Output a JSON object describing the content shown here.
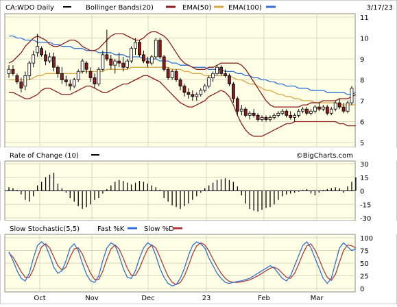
{
  "header": {
    "symbol": "CA:WDO Daily",
    "date": "3/17/23",
    "legend": [
      {
        "label": "Bollinger Bands(20)",
        "color": "#8b1a1a"
      },
      {
        "label": "EMA(50)",
        "color": "#d9a441"
      },
      {
        "label": "EMA(100)",
        "color": "#2f6fd6"
      }
    ]
  },
  "watermark": "©BigCharts.com",
  "colors": {
    "panel_bg": "#ffffe6",
    "grid": "#d7d7c0",
    "up": "#ffffff",
    "down": "#8b1a1a",
    "bb": "#8b1a1a",
    "ema50": "#d9a441",
    "ema100": "#2f6fd6",
    "roc": "#000000",
    "fast_k": "#2f6fd6",
    "slow_d": "#b03a3a"
  },
  "x_labels": [
    "Oct",
    "Nov",
    "Dec",
    "23",
    "Feb",
    "Mar"
  ],
  "roc_panel": {
    "title": "Rate of Change (10)",
    "yticks": [
      "30",
      "15",
      "0",
      "-15",
      "-30"
    ]
  },
  "stoch_panel": {
    "title": "Slow Stochastic(5,5)",
    "fast_label": "Fast %K",
    "slow_label": "Slow %D",
    "yticks": [
      "100",
      "75",
      "50",
      "25",
      "0"
    ]
  },
  "chart_data": [
    {
      "type": "candlestick",
      "title": "CA:WDO Daily",
      "ylim": [
        5,
        11
      ],
      "yticks": [
        11,
        10,
        9,
        8,
        7,
        6,
        5
      ],
      "ohlc": [
        {
          "o": 8.3,
          "h": 8.7,
          "l": 8.1,
          "c": 8.5
        },
        {
          "o": 8.5,
          "h": 8.7,
          "l": 8.2,
          "c": 8.3
        },
        {
          "o": 8.2,
          "h": 8.3,
          "l": 7.8,
          "c": 7.9
        },
        {
          "o": 7.9,
          "h": 8.1,
          "l": 7.4,
          "c": 7.6
        },
        {
          "o": 7.7,
          "h": 8.4,
          "l": 7.5,
          "c": 8.2
        },
        {
          "o": 8.2,
          "h": 8.9,
          "l": 8.0,
          "c": 8.8
        },
        {
          "o": 8.8,
          "h": 9.4,
          "l": 8.6,
          "c": 9.2
        },
        {
          "o": 9.3,
          "h": 10.2,
          "l": 9.1,
          "c": 9.6
        },
        {
          "o": 9.5,
          "h": 9.6,
          "l": 9.1,
          "c": 9.2
        },
        {
          "o": 9.2,
          "h": 9.4,
          "l": 8.7,
          "c": 8.9
        },
        {
          "o": 8.9,
          "h": 9.3,
          "l": 8.8,
          "c": 9.1
        },
        {
          "o": 9.1,
          "h": 9.3,
          "l": 8.4,
          "c": 8.6
        },
        {
          "o": 8.6,
          "h": 8.7,
          "l": 8.1,
          "c": 8.3
        },
        {
          "o": 8.3,
          "h": 8.6,
          "l": 7.8,
          "c": 8.0
        },
        {
          "o": 8.0,
          "h": 8.2,
          "l": 7.7,
          "c": 7.9
        },
        {
          "o": 7.8,
          "h": 8.0,
          "l": 7.5,
          "c": 7.7
        },
        {
          "o": 7.7,
          "h": 8.1,
          "l": 7.6,
          "c": 8.0
        },
        {
          "o": 8.0,
          "h": 8.5,
          "l": 7.9,
          "c": 8.4
        },
        {
          "o": 8.4,
          "h": 9.0,
          "l": 8.3,
          "c": 8.9
        },
        {
          "o": 8.8,
          "h": 8.9,
          "l": 8.3,
          "c": 8.5
        },
        {
          "o": 8.4,
          "h": 8.6,
          "l": 7.9,
          "c": 8.1
        },
        {
          "o": 8.1,
          "h": 8.3,
          "l": 7.6,
          "c": 7.8
        },
        {
          "o": 7.8,
          "h": 8.6,
          "l": 7.7,
          "c": 8.5
        },
        {
          "o": 8.5,
          "h": 9.4,
          "l": 8.4,
          "c": 9.2
        },
        {
          "o": 9.2,
          "h": 10.4,
          "l": 8.9,
          "c": 9.0
        },
        {
          "o": 9.0,
          "h": 9.2,
          "l": 8.5,
          "c": 8.7
        },
        {
          "o": 8.7,
          "h": 9.0,
          "l": 8.3,
          "c": 8.9
        },
        {
          "o": 8.9,
          "h": 9.3,
          "l": 8.6,
          "c": 8.8
        },
        {
          "o": 8.8,
          "h": 9.1,
          "l": 8.4,
          "c": 8.6
        },
        {
          "o": 8.6,
          "h": 9.0,
          "l": 8.5,
          "c": 8.9
        },
        {
          "o": 8.9,
          "h": 9.6,
          "l": 8.8,
          "c": 9.5
        },
        {
          "o": 9.5,
          "h": 10.0,
          "l": 9.2,
          "c": 9.8
        },
        {
          "o": 9.8,
          "h": 9.9,
          "l": 9.1,
          "c": 9.2
        },
        {
          "o": 9.2,
          "h": 9.4,
          "l": 8.8,
          "c": 8.9
        },
        {
          "o": 8.9,
          "h": 9.1,
          "l": 8.6,
          "c": 8.8
        },
        {
          "o": 8.8,
          "h": 9.2,
          "l": 8.7,
          "c": 9.1
        },
        {
          "o": 9.1,
          "h": 10.0,
          "l": 9.0,
          "c": 9.9
        },
        {
          "o": 9.9,
          "h": 10.0,
          "l": 9.0,
          "c": 9.1
        },
        {
          "o": 9.1,
          "h": 9.2,
          "l": 8.4,
          "c": 8.5
        },
        {
          "o": 8.5,
          "h": 8.6,
          "l": 8.0,
          "c": 8.1
        },
        {
          "o": 8.1,
          "h": 8.5,
          "l": 8.0,
          "c": 8.4
        },
        {
          "o": 8.4,
          "h": 8.5,
          "l": 7.9,
          "c": 8.0
        },
        {
          "o": 8.0,
          "h": 8.1,
          "l": 7.5,
          "c": 7.7
        },
        {
          "o": 7.7,
          "h": 7.8,
          "l": 7.2,
          "c": 7.4
        },
        {
          "o": 7.4,
          "h": 7.6,
          "l": 7.1,
          "c": 7.3
        },
        {
          "o": 7.3,
          "h": 7.5,
          "l": 7.0,
          "c": 7.2
        },
        {
          "o": 7.2,
          "h": 7.4,
          "l": 7.0,
          "c": 7.3
        },
        {
          "o": 7.3,
          "h": 7.6,
          "l": 7.2,
          "c": 7.5
        },
        {
          "o": 7.5,
          "h": 7.8,
          "l": 7.4,
          "c": 7.7
        },
        {
          "o": 7.7,
          "h": 8.2,
          "l": 7.6,
          "c": 8.1
        },
        {
          "o": 8.1,
          "h": 8.4,
          "l": 7.9,
          "c": 8.3
        },
        {
          "o": 8.3,
          "h": 8.7,
          "l": 8.2,
          "c": 8.6
        },
        {
          "o": 8.6,
          "h": 8.7,
          "l": 8.2,
          "c": 8.3
        },
        {
          "o": 8.3,
          "h": 8.5,
          "l": 8.1,
          "c": 8.2
        },
        {
          "o": 8.2,
          "h": 8.3,
          "l": 7.7,
          "c": 7.8
        },
        {
          "o": 7.8,
          "h": 7.9,
          "l": 6.9,
          "c": 7.1
        },
        {
          "o": 7.1,
          "h": 7.2,
          "l": 6.3,
          "c": 6.5
        },
        {
          "o": 6.5,
          "h": 6.8,
          "l": 6.3,
          "c": 6.6
        },
        {
          "o": 6.6,
          "h": 6.7,
          "l": 6.2,
          "c": 6.3
        },
        {
          "o": 6.3,
          "h": 6.5,
          "l": 6.1,
          "c": 6.4
        },
        {
          "o": 6.4,
          "h": 6.6,
          "l": 6.2,
          "c": 6.3
        },
        {
          "o": 6.3,
          "h": 6.4,
          "l": 6.0,
          "c": 6.1
        },
        {
          "o": 6.1,
          "h": 6.3,
          "l": 6.0,
          "c": 6.2
        },
        {
          "o": 6.2,
          "h": 6.3,
          "l": 6.0,
          "c": 6.1
        },
        {
          "o": 6.1,
          "h": 6.3,
          "l": 6.0,
          "c": 6.2
        },
        {
          "o": 6.2,
          "h": 6.4,
          "l": 6.1,
          "c": 6.3
        },
        {
          "o": 6.3,
          "h": 6.5,
          "l": 6.2,
          "c": 6.4
        },
        {
          "o": 6.4,
          "h": 6.6,
          "l": 6.3,
          "c": 6.5
        },
        {
          "o": 6.5,
          "h": 6.6,
          "l": 6.2,
          "c": 6.3
        },
        {
          "o": 6.3,
          "h": 6.5,
          "l": 6.1,
          "c": 6.2
        },
        {
          "o": 6.2,
          "h": 6.4,
          "l": 6.0,
          "c": 6.3
        },
        {
          "o": 6.3,
          "h": 6.6,
          "l": 6.2,
          "c": 6.5
        },
        {
          "o": 6.5,
          "h": 6.7,
          "l": 6.4,
          "c": 6.6
        },
        {
          "o": 6.6,
          "h": 6.7,
          "l": 6.3,
          "c": 6.4
        },
        {
          "o": 6.4,
          "h": 6.6,
          "l": 6.3,
          "c": 6.5
        },
        {
          "o": 6.5,
          "h": 6.8,
          "l": 6.4,
          "c": 6.7
        },
        {
          "o": 6.7,
          "h": 6.9,
          "l": 6.5,
          "c": 6.6
        },
        {
          "o": 6.6,
          "h": 6.8,
          "l": 6.5,
          "c": 6.7
        },
        {
          "o": 6.7,
          "h": 6.8,
          "l": 6.3,
          "c": 6.4
        },
        {
          "o": 6.4,
          "h": 6.7,
          "l": 6.3,
          "c": 6.6
        },
        {
          "o": 6.6,
          "h": 7.0,
          "l": 6.5,
          "c": 6.9
        },
        {
          "o": 6.9,
          "h": 7.1,
          "l": 6.6,
          "c": 6.7
        },
        {
          "o": 6.7,
          "h": 6.9,
          "l": 6.4,
          "c": 6.5
        },
        {
          "o": 6.5,
          "h": 7.0,
          "l": 6.4,
          "c": 6.9
        },
        {
          "o": 6.9,
          "h": 7.7,
          "l": 6.8,
          "c": 7.6
        }
      ],
      "bollinger": {
        "upper": [
          8.8,
          8.9,
          9.1,
          9.3,
          9.6,
          9.8,
          10.0,
          10.1,
          10.0,
          9.9,
          9.7,
          9.6,
          9.6,
          9.7,
          9.8,
          9.9,
          9.9,
          9.8,
          9.6,
          9.5,
          9.4,
          9.4,
          9.5,
          9.7,
          9.9,
          10.1,
          10.2,
          10.2,
          10.2,
          10.1,
          10.0,
          9.9,
          9.9,
          10.0,
          10.2,
          10.3,
          10.3,
          10.2,
          10.1,
          9.9,
          9.6,
          9.3,
          9.0,
          8.8,
          8.7,
          8.6,
          8.5,
          8.5,
          8.5,
          8.6,
          8.6,
          8.7,
          8.8,
          8.8,
          8.8,
          8.8,
          8.8,
          8.7,
          8.5,
          8.2,
          7.9,
          7.6,
          7.3,
          7.0,
          6.8,
          6.7,
          6.7,
          6.7,
          6.7,
          6.7,
          6.7,
          6.7,
          6.8,
          6.8,
          6.9,
          6.9,
          6.9,
          7.0,
          7.0,
          7.0,
          7.0,
          7.1,
          7.1,
          7.1,
          7.2,
          7.3
        ],
        "lower": [
          7.4,
          7.4,
          7.3,
          7.2,
          7.1,
          7.1,
          7.2,
          7.3,
          7.5,
          7.6,
          7.6,
          7.5,
          7.4,
          7.3,
          7.3,
          7.3,
          7.4,
          7.5,
          7.6,
          7.7,
          7.7,
          7.6,
          7.5,
          7.4,
          7.4,
          7.5,
          7.6,
          7.7,
          7.8,
          7.8,
          7.9,
          8.0,
          8.1,
          8.2,
          8.2,
          8.1,
          8.0,
          7.9,
          7.7,
          7.5,
          7.3,
          7.1,
          6.9,
          6.8,
          6.7,
          6.7,
          6.8,
          6.9,
          7.0,
          7.2,
          7.3,
          7.4,
          7.5,
          7.4,
          7.2,
          6.8,
          6.3,
          5.9,
          5.6,
          5.4,
          5.3,
          5.3,
          5.3,
          5.4,
          5.5,
          5.6,
          5.7,
          5.8,
          5.9,
          5.9,
          6.0,
          6.0,
          6.0,
          6.0,
          6.0,
          6.0,
          6.0,
          6.0,
          6.0,
          6.0,
          6.0,
          5.9,
          5.9,
          5.8,
          5.8,
          5.8
        ]
      },
      "ema50": [
        8.0,
        8.0,
        8.0,
        8.0,
        8.0,
        8.0,
        8.1,
        8.2,
        8.2,
        8.3,
        8.3,
        8.3,
        8.3,
        8.3,
        8.3,
        8.3,
        8.3,
        8.3,
        8.4,
        8.4,
        8.4,
        8.4,
        8.4,
        8.4,
        8.5,
        8.5,
        8.5,
        8.5,
        8.5,
        8.5,
        8.6,
        8.6,
        8.6,
        8.6,
        8.6,
        8.6,
        8.6,
        8.6,
        8.6,
        8.6,
        8.5,
        8.5,
        8.5,
        8.4,
        8.4,
        8.3,
        8.3,
        8.3,
        8.2,
        8.2,
        8.2,
        8.2,
        8.2,
        8.2,
        8.2,
        8.1,
        8.0,
        8.0,
        7.9,
        7.8,
        7.8,
        7.7,
        7.6,
        7.5,
        7.5,
        7.4,
        7.3,
        7.3,
        7.2,
        7.2,
        7.1,
        7.1,
        7.0,
        7.0,
        7.0,
        6.9,
        6.9,
        6.9,
        6.9,
        6.9,
        6.9,
        6.8,
        6.8,
        6.8,
        6.8,
        6.8
      ],
      "ema100": [
        10.1,
        10.1,
        10.0,
        10.0,
        9.9,
        9.9,
        9.9,
        9.8,
        9.8,
        9.8,
        9.8,
        9.7,
        9.7,
        9.6,
        9.6,
        9.6,
        9.5,
        9.5,
        9.5,
        9.4,
        9.4,
        9.4,
        9.3,
        9.3,
        9.3,
        9.3,
        9.2,
        9.2,
        9.2,
        9.1,
        9.1,
        9.1,
        9.1,
        9.0,
        9.0,
        9.0,
        9.0,
        8.9,
        8.9,
        8.9,
        8.8,
        8.8,
        8.7,
        8.7,
        8.7,
        8.6,
        8.6,
        8.6,
        8.6,
        8.5,
        8.5,
        8.5,
        8.5,
        8.4,
        8.4,
        8.4,
        8.3,
        8.3,
        8.2,
        8.2,
        8.1,
        8.1,
        8.0,
        8.0,
        7.9,
        7.9,
        7.8,
        7.8,
        7.7,
        7.7,
        7.7,
        7.6,
        7.6,
        7.6,
        7.5,
        7.5,
        7.5,
        7.5,
        7.4,
        7.4,
        7.4,
        7.4,
        7.4,
        7.3,
        7.3,
        7.4
      ]
    },
    {
      "type": "bar",
      "title": "Rate of Change (10)",
      "ylim": [
        -30,
        30
      ],
      "yticks": [
        30,
        15,
        0,
        -15,
        -30
      ],
      "values": [
        4,
        3,
        1,
        -4,
        -10,
        -12,
        -6,
        6,
        10,
        15,
        18,
        20,
        8,
        3,
        -2,
        -8,
        -12,
        -17,
        -20,
        -18,
        -15,
        -10,
        -8,
        -3,
        2,
        6,
        10,
        12,
        11,
        9,
        7,
        9,
        11,
        10,
        8,
        6,
        4,
        1,
        -8,
        -12,
        -16,
        -18,
        -20,
        -17,
        -14,
        -10,
        -6,
        -2,
        3,
        6,
        9,
        12,
        13,
        14,
        12,
        10,
        5,
        -5,
        -14,
        -20,
        -22,
        -23,
        -21,
        -19,
        -18,
        -15,
        -10,
        -6,
        -4,
        -3,
        -2,
        -1,
        1,
        2,
        -3,
        -5,
        -2,
        1,
        2,
        3,
        4,
        3,
        -2,
        5,
        10,
        15
      ]
    },
    {
      "type": "line",
      "title": "Slow Stochastic(5,5)",
      "ylim": [
        0,
        100
      ],
      "yticks": [
        100,
        75,
        50,
        25,
        0
      ],
      "series": [
        {
          "name": "Fast %K",
          "values": [
            72,
            55,
            35,
            20,
            15,
            30,
            60,
            85,
            92,
            85,
            65,
            42,
            30,
            35,
            55,
            80,
            88,
            75,
            50,
            28,
            15,
            12,
            25,
            55,
            80,
            90,
            85,
            65,
            40,
            22,
            20,
            35,
            60,
            80,
            90,
            85,
            65,
            40,
            22,
            10,
            5,
            8,
            20,
            40,
            65,
            85,
            92,
            88,
            80,
            60,
            45,
            30,
            20,
            12,
            10,
            12,
            14,
            15,
            18,
            20,
            25,
            30,
            35,
            40,
            45,
            40,
            30,
            20,
            15,
            25,
            45,
            65,
            85,
            92,
            80,
            60,
            40,
            20,
            10,
            20,
            50,
            80,
            90,
            82,
            75,
            78
          ]
        },
        {
          "name": "Slow %D",
          "values": [
            70,
            62,
            48,
            33,
            22,
            22,
            38,
            62,
            82,
            88,
            80,
            62,
            45,
            36,
            42,
            62,
            78,
            80,
            68,
            48,
            30,
            18,
            18,
            34,
            58,
            78,
            86,
            78,
            60,
            40,
            26,
            26,
            40,
            60,
            78,
            86,
            80,
            62,
            42,
            24,
            12,
            8,
            12,
            25,
            45,
            68,
            84,
            90,
            86,
            74,
            58,
            43,
            30,
            20,
            14,
            12,
            12,
            13,
            15,
            17,
            21,
            25,
            30,
            35,
            40,
            42,
            38,
            30,
            22,
            20,
            30,
            48,
            68,
            84,
            88,
            76,
            58,
            38,
            22,
            16,
            28,
            52,
            75,
            86,
            84,
            80
          ]
        }
      ]
    }
  ]
}
